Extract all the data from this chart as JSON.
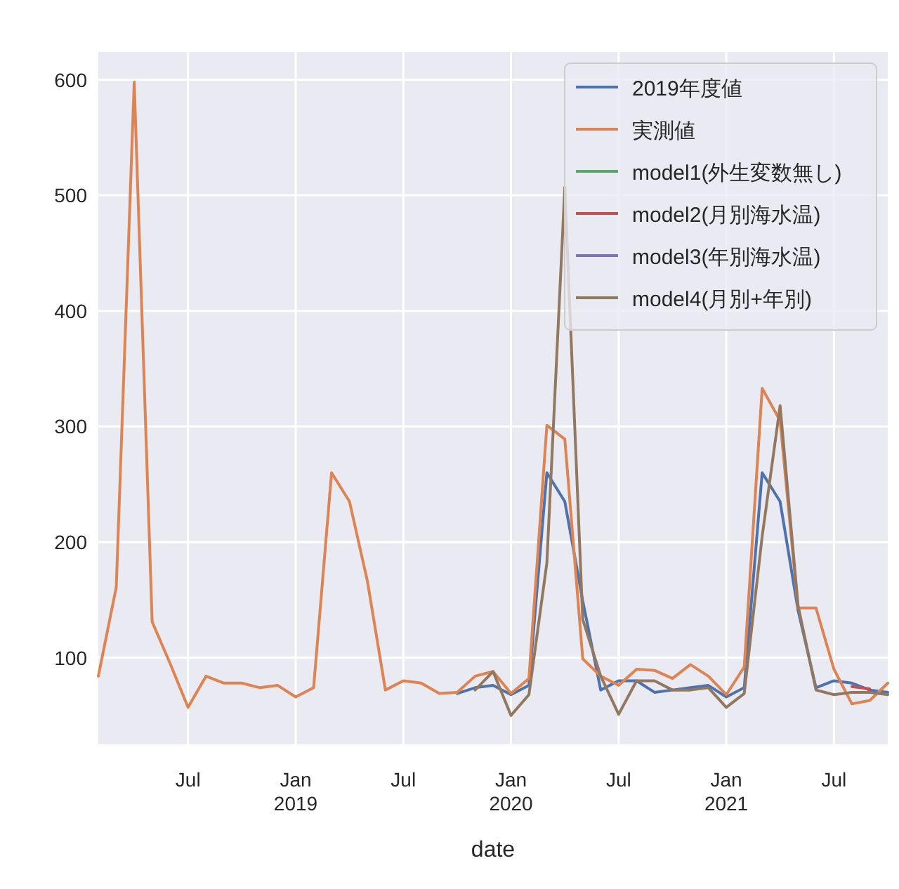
{
  "chart_data": {
    "type": "line",
    "xlabel": "date",
    "x": [
      "2018-02",
      "2018-03",
      "2018-04",
      "2018-05",
      "2018-06",
      "2018-07",
      "2018-08",
      "2018-09",
      "2018-10",
      "2018-11",
      "2018-12",
      "2019-01",
      "2019-02",
      "2019-03",
      "2019-04",
      "2019-05",
      "2019-06",
      "2019-07",
      "2019-08",
      "2019-09",
      "2019-10",
      "2019-11",
      "2019-12",
      "2020-01",
      "2020-02",
      "2020-03",
      "2020-04",
      "2020-05",
      "2020-06",
      "2020-07",
      "2020-08",
      "2020-09",
      "2020-10",
      "2020-11",
      "2020-12",
      "2021-01",
      "2021-02",
      "2021-03",
      "2021-04",
      "2021-05",
      "2021-06",
      "2021-07",
      "2021-08",
      "2021-09",
      "2021-10"
    ],
    "series": [
      {
        "name": "2019年度値",
        "color": "#4c72b0",
        "values": [
          null,
          null,
          null,
          null,
          null,
          null,
          null,
          null,
          null,
          null,
          null,
          null,
          null,
          null,
          null,
          null,
          null,
          null,
          null,
          null,
          69,
          74,
          76,
          68,
          76,
          260,
          235,
          149,
          72,
          80,
          80,
          70,
          72,
          74,
          76,
          66,
          74,
          260,
          235,
          141,
          74,
          80,
          78,
          72,
          70
        ]
      },
      {
        "name": "実測値",
        "color": "#dd8452",
        "values": [
          84,
          161,
          598,
          131,
          95,
          57,
          84,
          78,
          78,
          74,
          76,
          66,
          74,
          260,
          235,
          166,
          72,
          80,
          78,
          69,
          70,
          84,
          88,
          69,
          82,
          301,
          289,
          99,
          84,
          76,
          90,
          89,
          82,
          94,
          84,
          68,
          92,
          333,
          305,
          143,
          143,
          90,
          60,
          63,
          78
        ]
      },
      {
        "name": "model1(外生変数無し)",
        "color": "#55a868",
        "values": [
          null,
          null,
          null,
          null,
          null,
          null,
          null,
          null,
          null,
          null,
          null,
          null,
          null,
          null,
          null,
          null,
          null,
          null,
          null,
          null,
          null,
          null,
          null,
          null,
          null,
          null,
          null,
          null,
          null,
          null,
          null,
          null,
          null,
          null,
          null,
          null,
          null,
          null,
          null,
          null,
          null,
          null,
          null,
          null,
          null
        ]
      },
      {
        "name": "model2(月別海水温)",
        "color": "#c44e52",
        "values": [
          null,
          null,
          null,
          null,
          null,
          null,
          null,
          null,
          null,
          null,
          null,
          null,
          null,
          null,
          null,
          null,
          null,
          null,
          null,
          null,
          null,
          null,
          null,
          null,
          null,
          null,
          null,
          null,
          null,
          null,
          null,
          null,
          null,
          null,
          null,
          null,
          null,
          null,
          null,
          null,
          null,
          null,
          75,
          73,
          null
        ]
      },
      {
        "name": "model3(年別海水温)",
        "color": "#8172b3",
        "values": [
          null,
          null,
          null,
          null,
          null,
          null,
          null,
          null,
          null,
          null,
          null,
          null,
          null,
          null,
          null,
          null,
          null,
          null,
          null,
          null,
          null,
          null,
          null,
          null,
          null,
          null,
          null,
          null,
          null,
          null,
          null,
          null,
          null,
          null,
          null,
          null,
          null,
          null,
          null,
          null,
          null,
          null,
          null,
          null,
          null
        ]
      },
      {
        "name": "model4(月別+年別)",
        "color": "#937860",
        "values": [
          null,
          null,
          null,
          null,
          null,
          null,
          null,
          null,
          null,
          null,
          null,
          null,
          null,
          null,
          null,
          null,
          null,
          null,
          null,
          null,
          null,
          72,
          88,
          50,
          68,
          182,
          507,
          133,
          84,
          51,
          80,
          80,
          72,
          72,
          74,
          57,
          69,
          205,
          318,
          145,
          72,
          68,
          70,
          70,
          68
        ]
      }
    ],
    "xlim": [
      "2018-02",
      "2021-10"
    ],
    "xticks": [
      {
        "value": "2018-07",
        "label": "Jul"
      },
      {
        "value": "2019-01",
        "label": "Jan\n2019"
      },
      {
        "value": "2019-07",
        "label": "Jul"
      },
      {
        "value": "2020-01",
        "label": "Jan\n2020"
      },
      {
        "value": "2020-07",
        "label": "Jul"
      },
      {
        "value": "2021-01",
        "label": "Jan\n2021"
      },
      {
        "value": "2021-07",
        "label": "Jul"
      }
    ],
    "ylim": [
      25,
      624
    ],
    "yticks": [
      100,
      200,
      300,
      400,
      500,
      600
    ],
    "grid": true,
    "legend": "top right",
    "line_style": "solid",
    "marker": "none"
  }
}
